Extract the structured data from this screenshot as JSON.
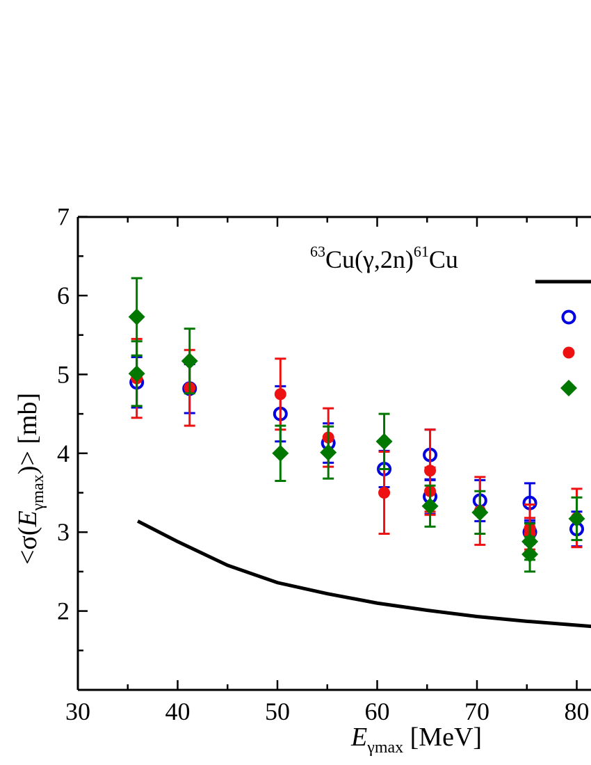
{
  "chart_data": {
    "type": "scatter",
    "annotation": {
      "mass_a": "63",
      "element_a": "Cu(",
      "gamma": "γ",
      "reaction": ",2n)",
      "mass_b": "61",
      "element_b": "Cu"
    },
    "xlabel": {
      "symbol": "E",
      "subscript": "γmax",
      "unit": " [MeV]"
    },
    "ylabel": {
      "prefix": "<σ(",
      "symbol": "E",
      "subscript": "γmax",
      "suffix": ")> [mb]"
    },
    "xlim": [
      30,
      82
    ],
    "ylim": [
      1,
      7
    ],
    "xticks": [
      30,
      40,
      50,
      60,
      70,
      80
    ],
    "yticks": [
      2,
      3,
      4,
      5,
      6,
      7
    ],
    "grid": false,
    "legend_placement": "right",
    "series": [
      {
        "marker": "line",
        "color": "#000000",
        "x": [
          36,
          40,
          45,
          50,
          55,
          60,
          65,
          70,
          75,
          80,
          82
        ],
        "y": [
          3.14,
          2.88,
          2.58,
          2.36,
          2.22,
          2.1,
          2.01,
          1.93,
          1.87,
          1.82,
          1.8
        ]
      },
      {
        "marker": "open-circle",
        "color": "#0000e0",
        "x": [
          35.9,
          41.2,
          50.3,
          55.1,
          60.7,
          65.3,
          65.3,
          70.3,
          75.3,
          75.3,
          80.0
        ],
        "y": [
          4.9,
          4.82,
          4.5,
          4.13,
          3.8,
          3.98,
          3.45,
          3.4,
          3.37,
          3.0,
          3.04
        ],
        "err": [
          0.32,
          0.31,
          0.35,
          0.25,
          0.23,
          0.32,
          0.22,
          0.26,
          0.25,
          0.15,
          0.22
        ]
      },
      {
        "marker": "filled-circle",
        "color": "#ee1111",
        "x": [
          35.9,
          41.2,
          50.3,
          55.1,
          60.7,
          65.3,
          65.3,
          70.3,
          75.3,
          75.3,
          80.0
        ],
        "y": [
          4.95,
          4.83,
          4.75,
          4.2,
          3.5,
          3.78,
          3.52,
          3.27,
          3.05,
          2.98,
          3.18
        ],
        "err": [
          0.5,
          0.48,
          0.45,
          0.37,
          0.52,
          0.52,
          0.3,
          0.43,
          0.3,
          0.2,
          0.37
        ]
      },
      {
        "marker": "diamond",
        "color": "#007800",
        "x": [
          35.9,
          35.9,
          41.2,
          50.3,
          55.1,
          60.7,
          65.3,
          70.3,
          75.3,
          75.3,
          80.0
        ],
        "y": [
          5.73,
          5.01,
          5.17,
          4.0,
          4.01,
          4.15,
          3.33,
          3.25,
          2.88,
          2.72,
          3.17
        ],
        "err": [
          0.49,
          0.41,
          0.41,
          0.35,
          0.33,
          0.35,
          0.26,
          0.27,
          0.23,
          0.22,
          0.27
        ]
      }
    ]
  }
}
